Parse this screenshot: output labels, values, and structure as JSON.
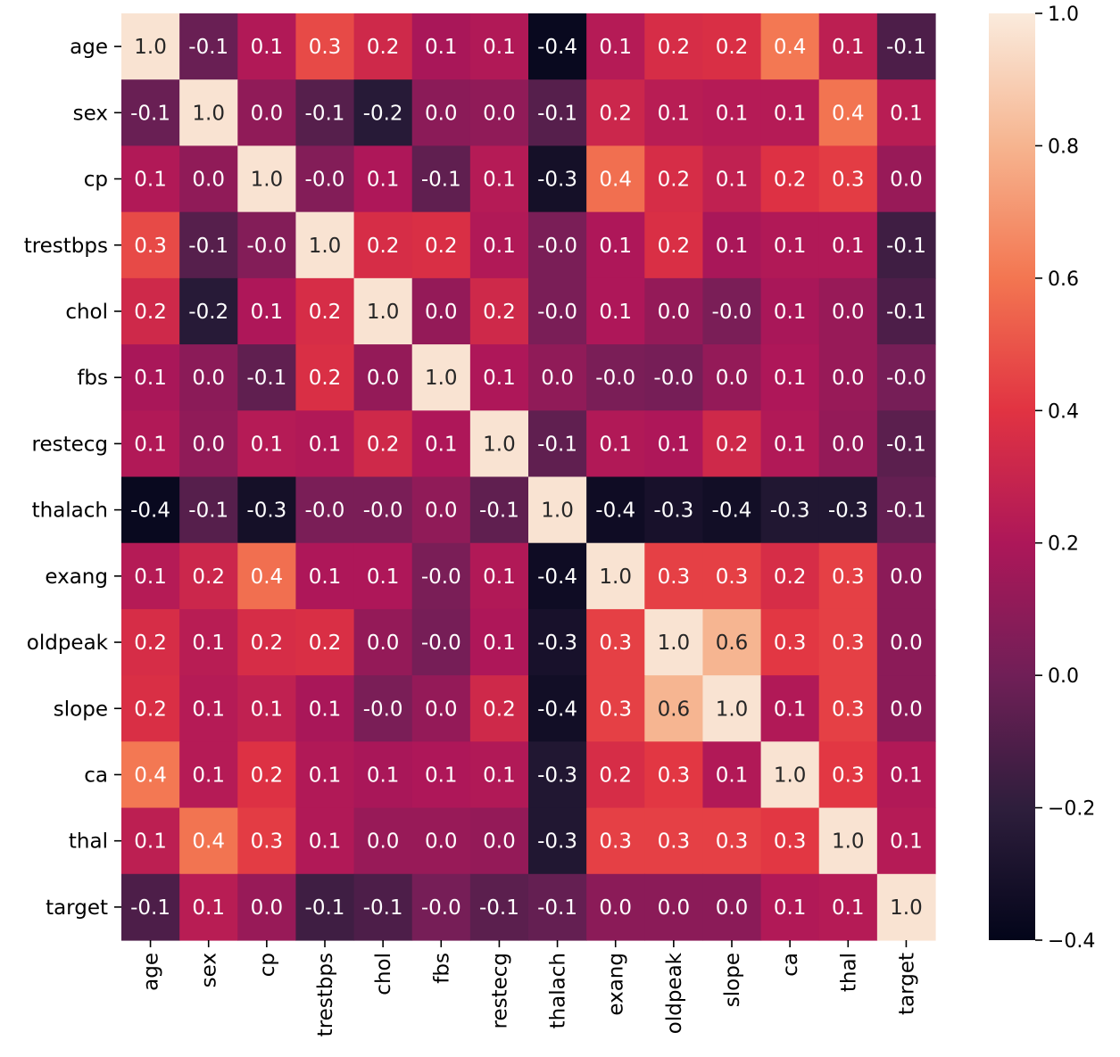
{
  "chart_data": {
    "type": "heatmap",
    "title": "",
    "xlabel": "",
    "ylabel": "",
    "variables": [
      "age",
      "sex",
      "cp",
      "trestbps",
      "chol",
      "fbs",
      "restecg",
      "thalach",
      "exang",
      "oldpeak",
      "slope",
      "ca",
      "thal",
      "target"
    ],
    "values": [
      [
        1.0,
        -0.1,
        0.1,
        0.3,
        0.2,
        0.1,
        0.1,
        -0.4,
        0.1,
        0.2,
        0.2,
        0.4,
        0.1,
        -0.1
      ],
      [
        -0.1,
        1.0,
        0.0,
        -0.1,
        -0.2,
        0.0,
        0.0,
        -0.1,
        0.2,
        0.1,
        0.1,
        0.1,
        0.4,
        0.1
      ],
      [
        0.1,
        0.0,
        1.0,
        -0.0,
        0.1,
        -0.1,
        0.1,
        -0.3,
        0.4,
        0.2,
        0.1,
        0.2,
        0.3,
        0.0
      ],
      [
        0.3,
        -0.1,
        -0.0,
        1.0,
        0.2,
        0.2,
        0.1,
        -0.0,
        0.1,
        0.2,
        0.1,
        0.1,
        0.1,
        -0.1
      ],
      [
        0.2,
        -0.2,
        0.1,
        0.2,
        1.0,
        0.0,
        0.2,
        -0.0,
        0.1,
        0.0,
        -0.0,
        0.1,
        0.0,
        -0.1
      ],
      [
        0.1,
        0.0,
        -0.1,
        0.2,
        0.0,
        1.0,
        0.1,
        0.0,
        -0.0,
        -0.0,
        0.0,
        0.1,
        0.0,
        -0.0
      ],
      [
        0.1,
        0.0,
        0.1,
        0.1,
        0.2,
        0.1,
        1.0,
        -0.1,
        0.1,
        0.1,
        0.2,
        0.1,
        0.0,
        -0.1
      ],
      [
        -0.4,
        -0.1,
        -0.3,
        -0.0,
        -0.0,
        0.0,
        -0.1,
        1.0,
        -0.4,
        -0.3,
        -0.4,
        -0.3,
        -0.3,
        -0.1
      ],
      [
        0.1,
        0.2,
        0.4,
        0.1,
        0.1,
        -0.0,
        0.1,
        -0.4,
        1.0,
        0.3,
        0.3,
        0.2,
        0.3,
        0.0
      ],
      [
        0.2,
        0.1,
        0.2,
        0.2,
        0.0,
        -0.0,
        0.1,
        -0.3,
        0.3,
        1.0,
        0.6,
        0.3,
        0.3,
        0.0
      ],
      [
        0.2,
        0.1,
        0.1,
        0.1,
        -0.0,
        0.0,
        0.2,
        -0.4,
        0.3,
        0.6,
        1.0,
        0.1,
        0.3,
        0.0
      ],
      [
        0.4,
        0.1,
        0.2,
        0.1,
        0.1,
        0.1,
        0.1,
        -0.3,
        0.2,
        0.3,
        0.1,
        1.0,
        0.3,
        0.1
      ],
      [
        0.1,
        0.4,
        0.3,
        0.1,
        0.0,
        0.0,
        0.0,
        -0.3,
        0.3,
        0.3,
        0.3,
        0.3,
        1.0,
        0.1
      ],
      [
        -0.1,
        0.1,
        0.0,
        -0.1,
        -0.1,
        -0.0,
        -0.1,
        -0.1,
        0.0,
        0.0,
        0.0,
        0.1,
        0.1,
        1.0
      ]
    ],
    "shades": [
      [
        0.98,
        0.27,
        0.44,
        0.62,
        0.52,
        0.42,
        0.44,
        0.02,
        0.45,
        0.54,
        0.55,
        0.72,
        0.47,
        0.21
      ],
      [
        0.27,
        0.98,
        0.36,
        0.23,
        0.12,
        0.35,
        0.36,
        0.23,
        0.51,
        0.46,
        0.45,
        0.45,
        0.71,
        0.46
      ],
      [
        0.44,
        0.36,
        0.98,
        0.33,
        0.43,
        0.25,
        0.45,
        0.06,
        0.7,
        0.54,
        0.48,
        0.56,
        0.59,
        0.38
      ],
      [
        0.62,
        0.23,
        0.33,
        0.98,
        0.54,
        0.55,
        0.44,
        0.31,
        0.43,
        0.55,
        0.42,
        0.44,
        0.44,
        0.18
      ],
      [
        0.52,
        0.12,
        0.43,
        0.54,
        0.98,
        0.37,
        0.52,
        0.31,
        0.43,
        0.37,
        0.31,
        0.42,
        0.38,
        0.21
      ],
      [
        0.42,
        0.35,
        0.25,
        0.55,
        0.37,
        0.98,
        0.43,
        0.36,
        0.31,
        0.3,
        0.37,
        0.43,
        0.38,
        0.3
      ],
      [
        0.44,
        0.36,
        0.45,
        0.44,
        0.52,
        0.43,
        0.98,
        0.25,
        0.44,
        0.43,
        0.52,
        0.44,
        0.37,
        0.24
      ],
      [
        0.02,
        0.23,
        0.06,
        0.31,
        0.31,
        0.36,
        0.25,
        0.98,
        0.04,
        0.07,
        0.05,
        0.1,
        0.1,
        0.26
      ],
      [
        0.45,
        0.51,
        0.7,
        0.43,
        0.43,
        0.31,
        0.44,
        0.04,
        0.98,
        0.6,
        0.6,
        0.54,
        0.6,
        0.35
      ],
      [
        0.54,
        0.46,
        0.54,
        0.55,
        0.37,
        0.3,
        0.43,
        0.07,
        0.6,
        0.98,
        0.86,
        0.58,
        0.6,
        0.35
      ],
      [
        0.55,
        0.45,
        0.48,
        0.42,
        0.31,
        0.37,
        0.52,
        0.05,
        0.6,
        0.86,
        0.98,
        0.44,
        0.6,
        0.35
      ],
      [
        0.72,
        0.45,
        0.56,
        0.44,
        0.42,
        0.43,
        0.44,
        0.1,
        0.54,
        0.58,
        0.44,
        0.98,
        0.58,
        0.44
      ],
      [
        0.47,
        0.71,
        0.59,
        0.44,
        0.38,
        0.38,
        0.37,
        0.1,
        0.6,
        0.6,
        0.6,
        0.58,
        0.98,
        0.45
      ],
      [
        0.21,
        0.46,
        0.38,
        0.18,
        0.21,
        0.3,
        0.24,
        0.26,
        0.35,
        0.35,
        0.35,
        0.44,
        0.45,
        0.98
      ]
    ],
    "value_range": [
      -0.4,
      1.0
    ],
    "colormap": "rocket",
    "colormap_stops": [
      "#03051a",
      "#2e1e3c",
      "#701f57",
      "#ad1759",
      "#e13342",
      "#f37651",
      "#f6b48f",
      "#faebdd"
    ],
    "colorbar": {
      "ticks": [
        1.0,
        0.8,
        0.6,
        0.4,
        0.2,
        0.0,
        -0.2,
        -0.4
      ],
      "tick_labels": [
        "1.0",
        "0.8",
        "0.6",
        "0.4",
        "0.2",
        "0.0",
        "−0.2",
        "−0.4"
      ],
      "placement": "right"
    },
    "grid": false
  }
}
